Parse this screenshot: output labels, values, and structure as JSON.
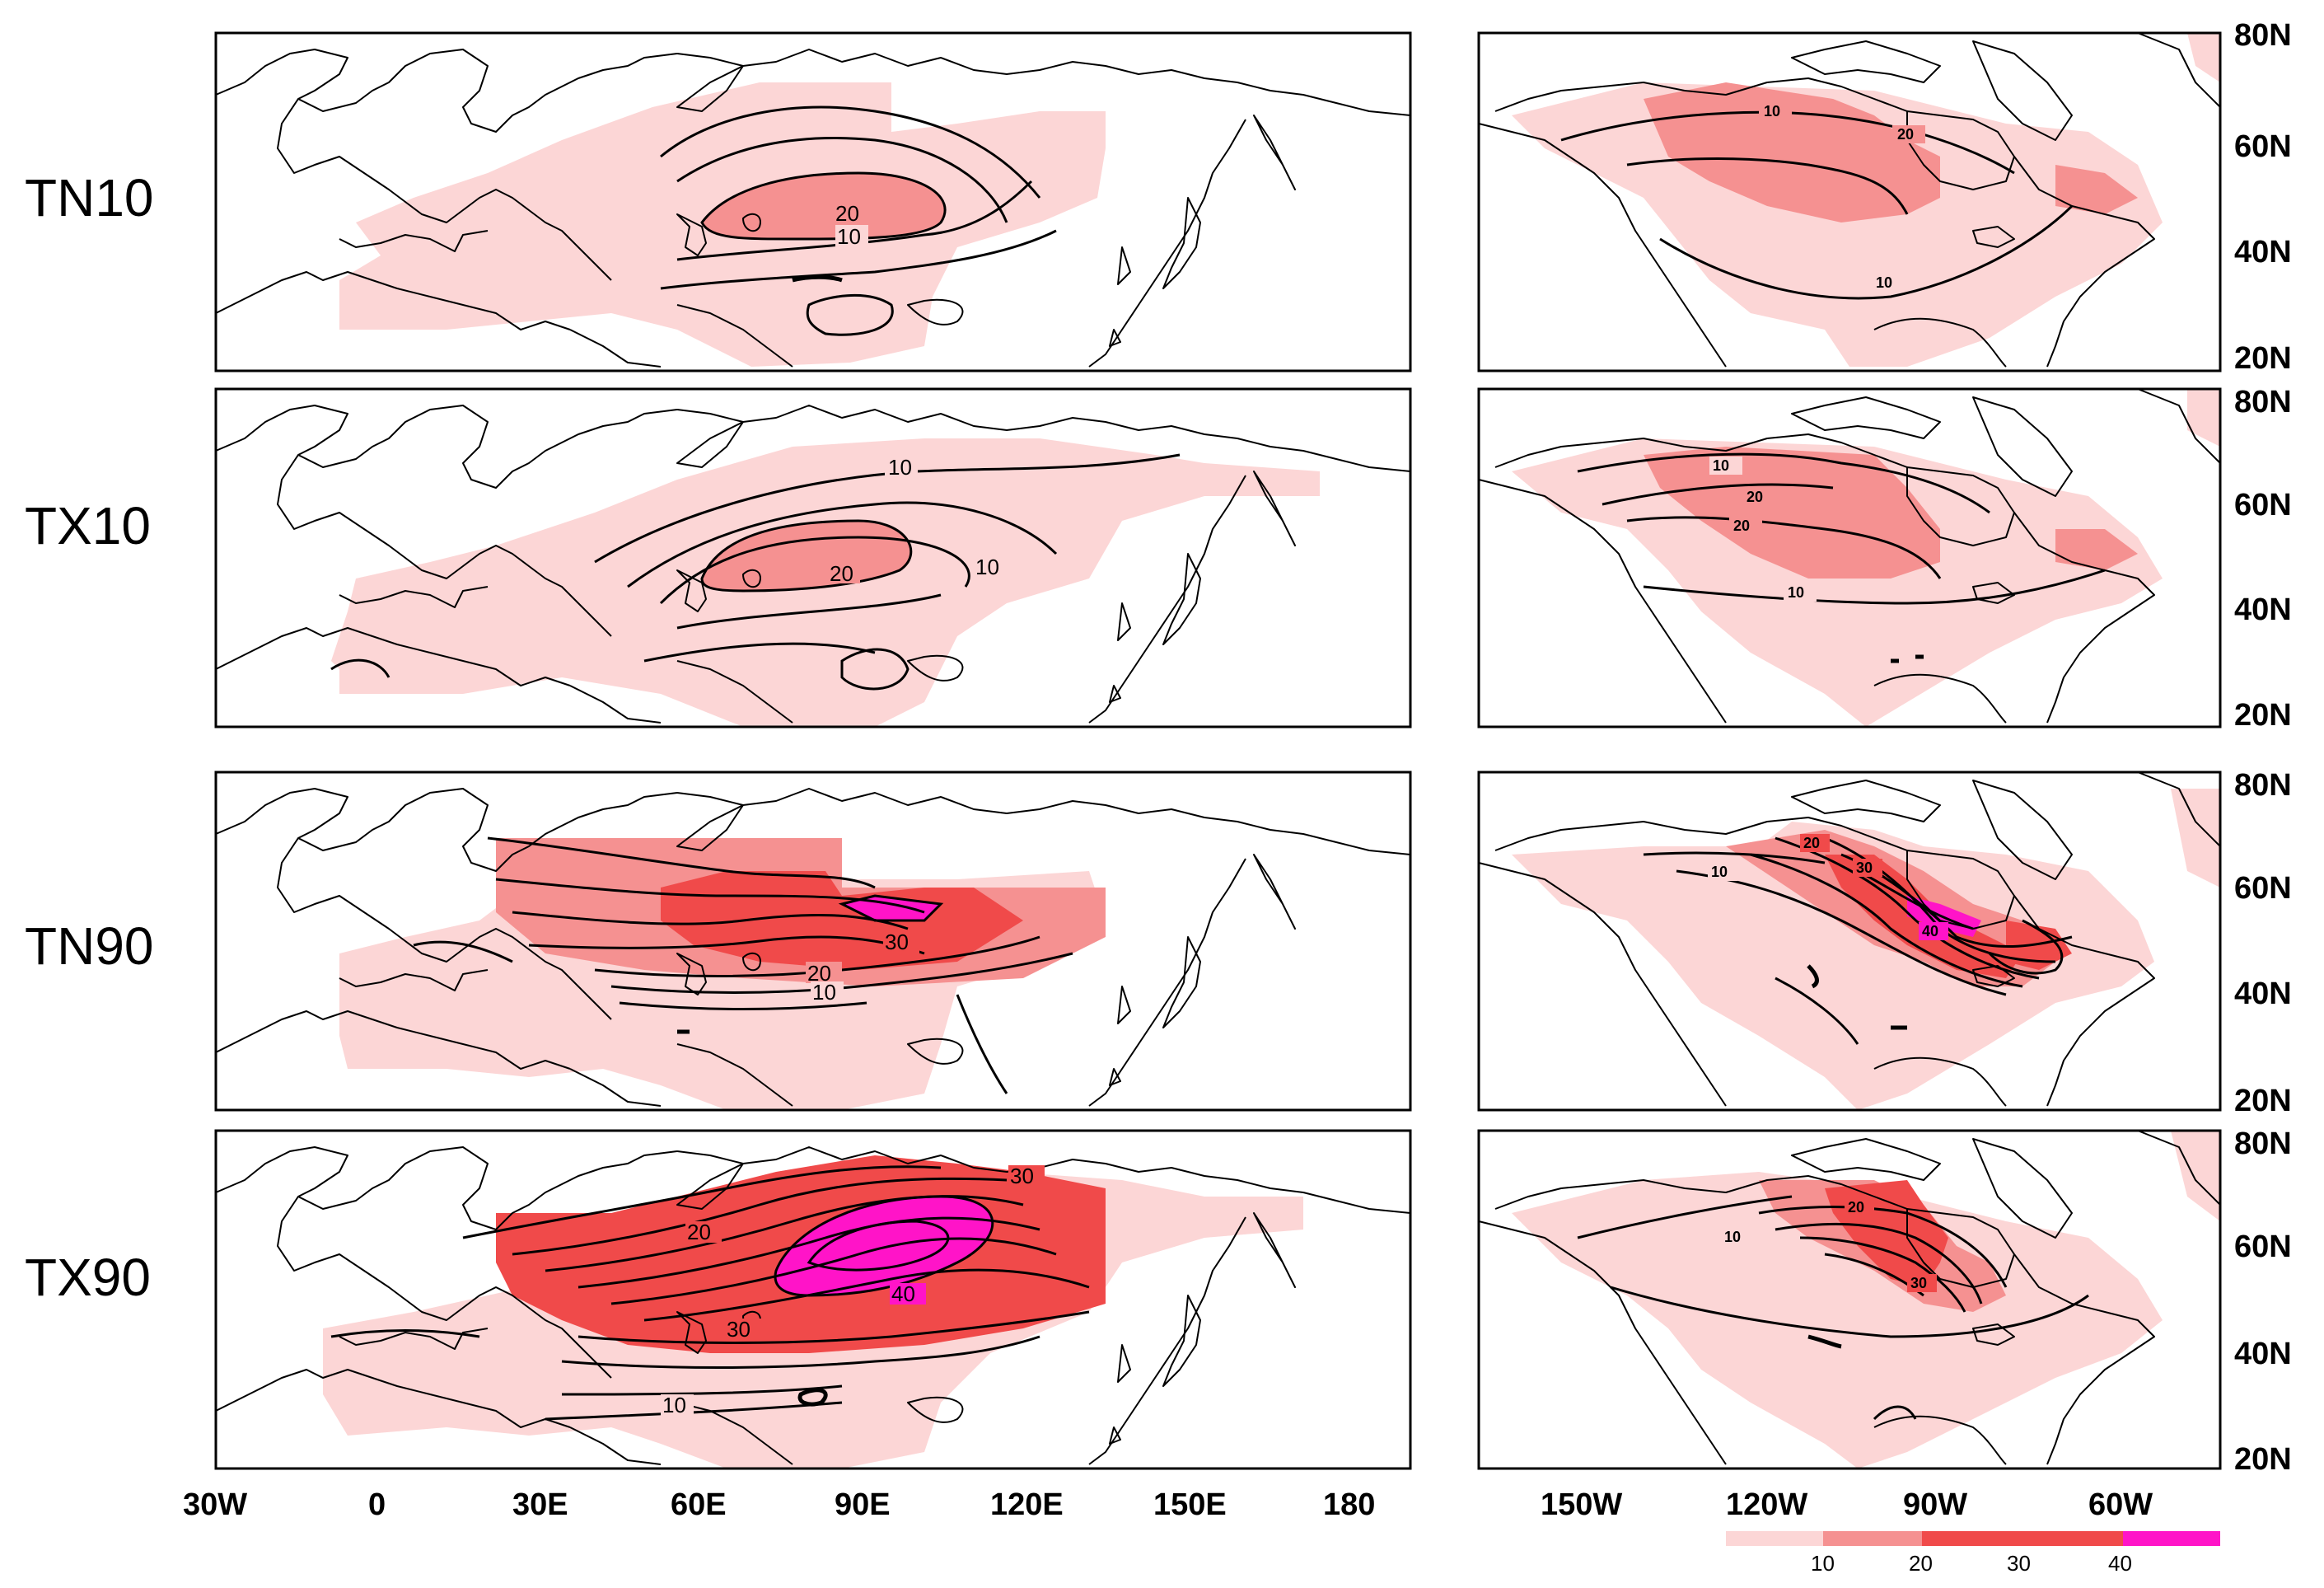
{
  "colors": {
    "level_10": "#fcd6d6",
    "level_20": "#f59191",
    "level_30": "#f04a4a",
    "level_40": "#ff14c8",
    "frame": "#000000"
  },
  "rows": [
    {
      "label": "TN10"
    },
    {
      "label": "TX10"
    },
    {
      "label": "TN90"
    },
    {
      "label": "TX90"
    }
  ],
  "eurasia_x_ticks": [
    "30W",
    "0",
    "30E",
    "60E",
    "90E",
    "120E",
    "150E",
    "180"
  ],
  "namerica_x_ticks": [
    "150W",
    "120W",
    "90W",
    "60W"
  ],
  "lat_ticks": [
    "80N",
    "60N",
    "40N",
    "20N"
  ],
  "contour_labels": {
    "tn10_eu": [
      "20",
      "10"
    ],
    "tn10_na": [
      "10",
      "20",
      "10"
    ],
    "tx10_eu": [
      "10",
      "20",
      "10"
    ],
    "tx10_na": [
      "10",
      "20",
      "20",
      "10"
    ],
    "tn90_eu": [
      "30",
      "20",
      "10"
    ],
    "tn90_na": [
      "20",
      "30",
      "10",
      "40"
    ],
    "tx90_eu": [
      "30",
      "20",
      "40",
      "30",
      "10"
    ],
    "tx90_na": [
      "20",
      "10",
      "30"
    ]
  },
  "legend": {
    "labels": [
      "10",
      "20",
      "30",
      "40"
    ]
  }
}
